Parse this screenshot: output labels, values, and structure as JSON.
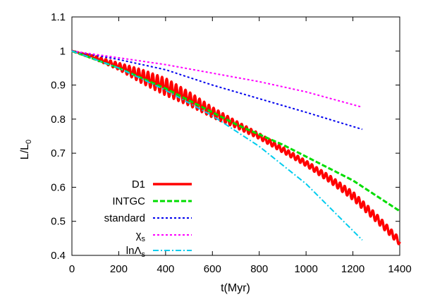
{
  "chart_data": {
    "type": "line",
    "xlabel": "t(Myr)",
    "ylabel": "L/L",
    "ylabel_sub": "0",
    "xlim": [
      0,
      1400
    ],
    "ylim": [
      0.4,
      1.1
    ],
    "xticks": [
      0,
      200,
      400,
      600,
      800,
      1000,
      1200,
      1400
    ],
    "yticks": [
      0.4,
      0.5,
      0.6,
      0.7,
      0.8,
      0.9,
      1.0,
      1.1
    ],
    "xtick_labels": [
      "0",
      "200",
      "400",
      "600",
      "800",
      "1000",
      "1200",
      "1400"
    ],
    "ytick_labels": [
      "0.4",
      "0.5",
      "0.6",
      "0.7",
      "0.8",
      "0.9",
      "1",
      "1.1"
    ],
    "grid": false,
    "legend_position": "bottom-left",
    "series": [
      {
        "name": "D1",
        "color": "#ff0000",
        "style": "solid-oscillating",
        "x": [
          0,
          100,
          200,
          300,
          400,
          500,
          600,
          700,
          800,
          900,
          1000,
          1100,
          1200,
          1300,
          1400
        ],
        "y": [
          1.0,
          0.98,
          0.955,
          0.925,
          0.895,
          0.86,
          0.82,
          0.785,
          0.75,
          0.71,
          0.67,
          0.625,
          0.575,
          0.51,
          0.44
        ],
        "oscillation_amplitude": [
          0.0,
          0.005,
          0.01,
          0.02,
          0.025,
          0.02,
          0.015,
          0.01,
          0.008,
          0.008,
          0.008,
          0.01,
          0.012,
          0.012,
          0.01
        ]
      },
      {
        "name": "INTGC",
        "color": "#00dd00",
        "style": "dashed",
        "x": [
          0,
          100,
          200,
          300,
          400,
          500,
          600,
          700,
          800,
          900,
          1000,
          1100,
          1200,
          1300,
          1400
        ],
        "y": [
          1.0,
          0.975,
          0.95,
          0.92,
          0.89,
          0.855,
          0.82,
          0.785,
          0.755,
          0.725,
          0.69,
          0.655,
          0.62,
          0.575,
          0.53
        ]
      },
      {
        "name": "standard",
        "color": "#0000ee",
        "style": "dotted",
        "x": [
          0,
          200,
          400,
          600,
          800,
          1000,
          1240
        ],
        "y": [
          1.0,
          0.975,
          0.945,
          0.9,
          0.86,
          0.82,
          0.77
        ]
      },
      {
        "name": "χ",
        "name_sub": "s",
        "color": "#ff00ff",
        "style": "dotted",
        "x": [
          0,
          200,
          400,
          600,
          800,
          1000,
          1240
        ],
        "y": [
          1.0,
          0.98,
          0.96,
          0.935,
          0.91,
          0.88,
          0.835
        ]
      },
      {
        "name": "lnΛ",
        "name_sub": "s",
        "color": "#00ccee",
        "style": "dash-dot",
        "x": [
          0,
          200,
          400,
          600,
          800,
          1000,
          1240
        ],
        "y": [
          1.0,
          0.95,
          0.885,
          0.81,
          0.72,
          0.61,
          0.445
        ]
      }
    ]
  }
}
